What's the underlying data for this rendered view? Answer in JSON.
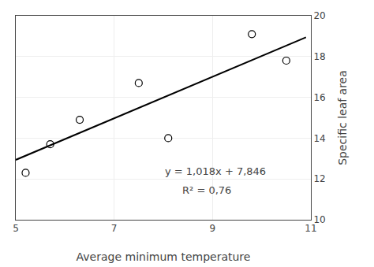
{
  "chart_data": {
    "type": "scatter",
    "xlabel": "Average minimum temperature",
    "ylabel": "Specific leaf area",
    "series": [
      {
        "type": "scatter",
        "marker": "circle",
        "color": "white",
        "x": [
          5.2,
          5.7,
          6.3,
          7.5,
          8.1,
          9.8,
          10.5
        ],
        "values": [
          12.3,
          13.7,
          14.9,
          16.7,
          14.0,
          19.1,
          17.8
        ]
      },
      {
        "type": "line",
        "line_style": "solid",
        "color": "black",
        "x": [
          5.0,
          10.9
        ],
        "values": [
          12.936,
          18.9422
        ]
      }
    ],
    "annotations": [
      {
        "text": "y = 1,018x + 7,846",
        "x": 8.0,
        "y": 12.0
      },
      {
        "text": "R² = 0,76",
        "x": 8.35,
        "y": 11.1
      }
    ],
    "xlim": [
      5,
      11
    ],
    "ylim": [
      10,
      20
    ],
    "xticks": [
      5,
      7,
      9,
      11
    ],
    "yticks": [
      10,
      12,
      14,
      16,
      18,
      20
    ],
    "grid": true
  }
}
